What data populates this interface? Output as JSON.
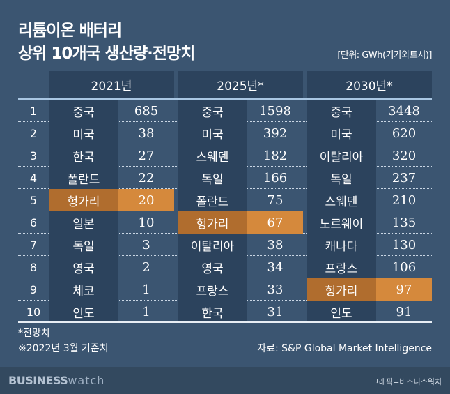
{
  "title": [
    "리튬이온 배터리",
    "상위 10개국 생산량·전망치"
  ],
  "unit": "[단위: GWh(기가와트시)]",
  "chart_data": {
    "type": "table",
    "columns": [
      "2021년",
      "2025년*",
      "2030년*"
    ],
    "ranks": [
      "1",
      "2",
      "3",
      "4",
      "5",
      "6",
      "7",
      "8",
      "9",
      "10"
    ],
    "groups": [
      {
        "year": "2021년",
        "rows": [
          [
            "중국",
            "685"
          ],
          [
            "미국",
            "38"
          ],
          [
            "한국",
            "27"
          ],
          [
            "폴란드",
            "22"
          ],
          [
            "헝가리",
            "20"
          ],
          [
            "일본",
            "10"
          ],
          [
            "독일",
            "3"
          ],
          [
            "영국",
            "2"
          ],
          [
            "체코",
            "1"
          ],
          [
            "인도",
            "1"
          ]
        ],
        "highlight_rank": 5
      },
      {
        "year": "2025년*",
        "rows": [
          [
            "중국",
            "1598"
          ],
          [
            "미국",
            "392"
          ],
          [
            "스웨덴",
            "182"
          ],
          [
            "독일",
            "166"
          ],
          [
            "폴란드",
            "75"
          ],
          [
            "헝가리",
            "67"
          ],
          [
            "이탈리아",
            "38"
          ],
          [
            "영국",
            "34"
          ],
          [
            "프랑스",
            "33"
          ],
          [
            "한국",
            "31"
          ]
        ],
        "highlight_rank": 6
      },
      {
        "year": "2030년*",
        "rows": [
          [
            "중국",
            "3448"
          ],
          [
            "미국",
            "620"
          ],
          [
            "이탈리아",
            "320"
          ],
          [
            "독일",
            "237"
          ],
          [
            "스웨덴",
            "210"
          ],
          [
            "노르웨이",
            "135"
          ],
          [
            "캐나다",
            "130"
          ],
          [
            "프랑스",
            "106"
          ],
          [
            "헝가리",
            "97"
          ],
          [
            "인도",
            "91"
          ]
        ],
        "highlight_rank": 9
      }
    ],
    "highlight_color": "#d5893c"
  },
  "footnotes": [
    "*전망치",
    "※2022년 3월 기준치"
  ],
  "source": "자료: S&P Global Market Intelligence",
  "logo": "BUSINESS watch",
  "credit": "그래픽=비즈니스워치"
}
